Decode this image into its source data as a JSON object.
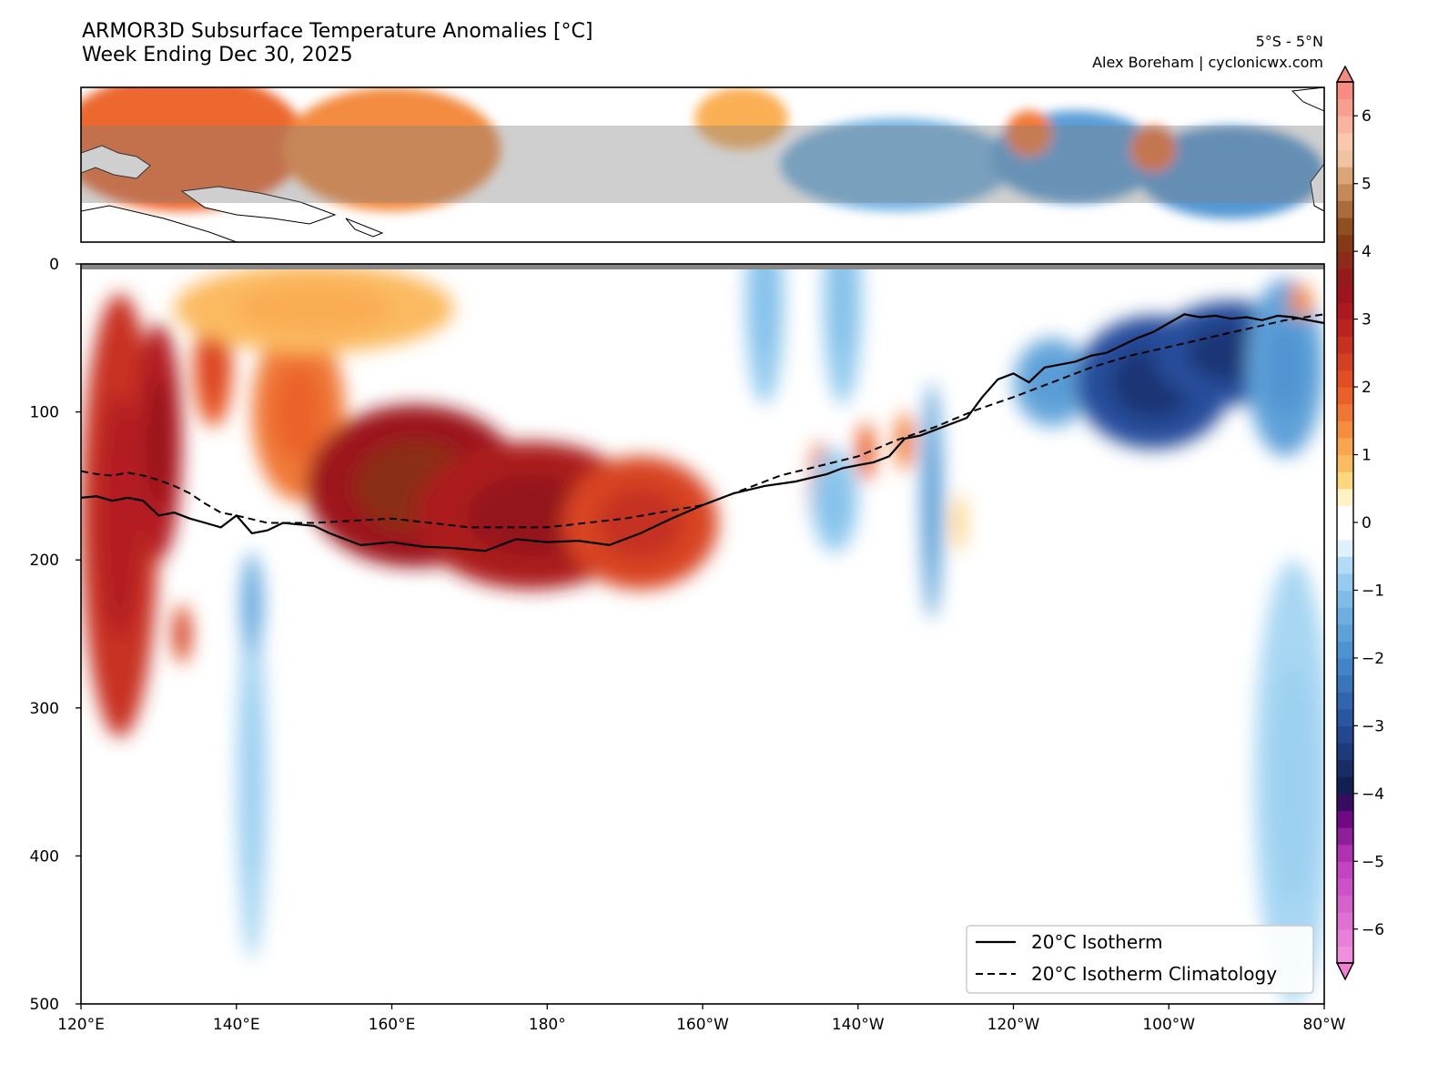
{
  "header": {
    "title_line1": "ARMOR3D Subsurface Temperature Anomalies [°C]",
    "title_line2": "Week Ending Dec 30, 2025",
    "region": "5°S - 5°N",
    "credit": "Alex Boreham | cyclonicwx.com"
  },
  "chart_data": {
    "type": "heatmap",
    "x_axis": {
      "label": "",
      "ticks": [
        "120°E",
        "140°E",
        "160°E",
        "180°",
        "160°W",
        "140°W",
        "120°W",
        "100°W",
        "80°W"
      ],
      "range_deg_east": [
        120,
        280
      ]
    },
    "y_axis": {
      "label": "",
      "ticks": [
        "0",
        "100",
        "200",
        "300",
        "400",
        "500"
      ],
      "range_depth_m": [
        0,
        500
      ],
      "inverted": true
    },
    "colorbar": {
      "ticks": [
        "6",
        "5",
        "4",
        "3",
        "2",
        "1",
        "0",
        "−1",
        "−2",
        "−3",
        "−4",
        "−5",
        "−6"
      ],
      "range": [
        -6.5,
        6.5
      ],
      "extend": "both"
    },
    "anomaly_blobs": [
      {
        "lon": 125,
        "depth": 170,
        "rx": 5,
        "ry": 150,
        "value": 2.6
      },
      {
        "lon": 130,
        "depth": 120,
        "rx": 3,
        "ry": 80,
        "value": 3.0
      },
      {
        "lon": 137,
        "depth": 70,
        "rx": 2.5,
        "ry": 40,
        "value": 2.0
      },
      {
        "lon": 133,
        "depth": 250,
        "rx": 1.2,
        "ry": 20,
        "value": 2.2
      },
      {
        "lon": 148,
        "depth": 100,
        "rx": 6,
        "ry": 60,
        "value": 1.6
      },
      {
        "lon": 163,
        "depth": 150,
        "rx": 14,
        "ry": 55,
        "value": 3.4
      },
      {
        "lon": 178,
        "depth": 170,
        "rx": 15,
        "ry": 50,
        "value": 3.1
      },
      {
        "lon": 192,
        "depth": 175,
        "rx": 10,
        "ry": 45,
        "value": 2.3
      },
      {
        "lon": 150,
        "depth": 30,
        "rx": 18,
        "ry": 30,
        "value": 0.9
      },
      {
        "lon": 215,
        "depth": 150,
        "rx": 1.3,
        "ry": 30,
        "value": 1.6
      },
      {
        "lon": 221,
        "depth": 127,
        "rx": 1.2,
        "ry": 20,
        "value": 1.8
      },
      {
        "lon": 226,
        "depth": 120,
        "rx": 1.2,
        "ry": 20,
        "value": 1.5
      },
      {
        "lon": 233,
        "depth": 175,
        "rx": 0.8,
        "ry": 20,
        "value": 0.7
      },
      {
        "lon": 208,
        "depth": 25,
        "rx": 2.5,
        "ry": 70,
        "value": -0.9
      },
      {
        "lon": 218,
        "depth": 25,
        "rx": 2.5,
        "ry": 70,
        "value": -0.9
      },
      {
        "lon": 217,
        "depth": 160,
        "rx": 3,
        "ry": 35,
        "value": -0.9
      },
      {
        "lon": 229.5,
        "depth": 160,
        "rx": 1.4,
        "ry": 80,
        "value": -1.5
      },
      {
        "lon": 245,
        "depth": 80,
        "rx": 5,
        "ry": 30,
        "value": -1.5
      },
      {
        "lon": 258,
        "depth": 80,
        "rx": 10,
        "ry": 45,
        "value": -3.0
      },
      {
        "lon": 268,
        "depth": 60,
        "rx": 10,
        "ry": 35,
        "value": -3.0
      },
      {
        "lon": 275,
        "depth": 70,
        "rx": 5,
        "ry": 60,
        "value": -1.6
      },
      {
        "lon": 276,
        "depth": 350,
        "rx": 5,
        "ry": 150,
        "value": -0.7
      },
      {
        "lon": 142,
        "depth": 350,
        "rx": 2,
        "ry": 120,
        "value": -0.7
      },
      {
        "lon": 142,
        "depth": 230,
        "rx": 1.5,
        "ry": 35,
        "value": -1.3
      },
      {
        "lon": 277,
        "depth": 25,
        "rx": 1.5,
        "ry": 12,
        "value": 1.3
      }
    ],
    "surface_blobs": [
      {
        "lon": 133,
        "lat": 3,
        "rx": 16,
        "ry": 9,
        "value": 1.8
      },
      {
        "lon": 160,
        "lat": 2,
        "rx": 14,
        "ry": 8,
        "value": 1.4
      },
      {
        "lon": 205,
        "lat": 6,
        "rx": 6,
        "ry": 4,
        "value": 1.0
      },
      {
        "lon": 225,
        "lat": 0,
        "rx": 15,
        "ry": 6,
        "value": -1.3
      },
      {
        "lon": 248,
        "lat": 1,
        "rx": 11,
        "ry": 6,
        "value": -1.7
      },
      {
        "lon": 268,
        "lat": -1,
        "rx": 12,
        "ry": 6,
        "value": -1.8
      },
      {
        "lon": 242,
        "lat": 4,
        "rx": 3,
        "ry": 3,
        "value": 1.6
      },
      {
        "lon": 258,
        "lat": 2,
        "rx": 3,
        "ry": 3,
        "value": 1.7
      }
    ],
    "isotherm_20C": {
      "lon": [
        120,
        122,
        124,
        126,
        128,
        130,
        132,
        134,
        136,
        138,
        140,
        142,
        144,
        146,
        148,
        150,
        152,
        156,
        160,
        164,
        168,
        172,
        176,
        180,
        184,
        188,
        192,
        196,
        200,
        204,
        208,
        212,
        216,
        218,
        220,
        222,
        224,
        226,
        228,
        230,
        232,
        234,
        236,
        238,
        240,
        242,
        244,
        246,
        248,
        250,
        252,
        254,
        256,
        258,
        260,
        262,
        264,
        266,
        268,
        270,
        272,
        274,
        276,
        278,
        280
      ],
      "depth": [
        158,
        157,
        160,
        158,
        160,
        170,
        168,
        172,
        175,
        178,
        170,
        182,
        180,
        175,
        176,
        177,
        182,
        190,
        188,
        191,
        192,
        194,
        186,
        188,
        187,
        190,
        182,
        172,
        163,
        155,
        150,
        147,
        142,
        138,
        136,
        134,
        130,
        118,
        116,
        112,
        108,
        104,
        90,
        78,
        74,
        80,
        70,
        68,
        66,
        62,
        60,
        55,
        50,
        46,
        40,
        34,
        36,
        35,
        37,
        36,
        38,
        35,
        36,
        38,
        40
      ]
    },
    "isotherm_20C_climatology": {
      "lon": [
        120,
        122,
        124,
        126,
        128,
        130,
        132,
        134,
        136,
        138,
        140,
        144,
        150,
        160,
        170,
        180,
        190,
        200,
        210,
        220,
        225,
        230,
        235,
        240,
        245,
        250,
        255,
        260,
        265,
        270,
        275,
        280
      ],
      "depth": [
        140,
        142,
        143,
        141,
        143,
        146,
        150,
        155,
        162,
        168,
        170,
        175,
        175,
        172,
        178,
        178,
        172,
        163,
        143,
        130,
        119,
        110,
        99,
        90,
        80,
        70,
        62,
        56,
        50,
        44,
        38,
        34
      ]
    },
    "legend": {
      "position": "lower-right",
      "entries": [
        "20°C Isotherm",
        "20°C Isotherm Climatology"
      ]
    }
  }
}
